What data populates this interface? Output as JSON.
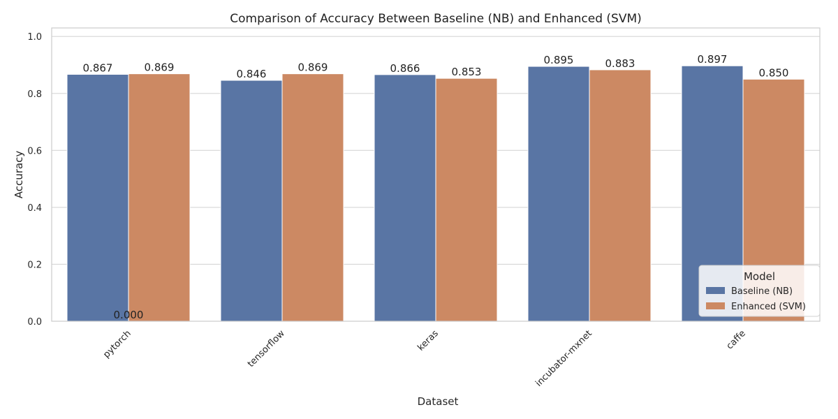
{
  "chart_data": {
    "type": "bar",
    "title": "Comparison of Accuracy Between Baseline (NB) and Enhanced (SVM)",
    "xlabel": "Dataset",
    "ylabel": "Accuracy",
    "categories": [
      "pytorch",
      "tensorflow",
      "keras",
      "incubator-mxnet",
      "caffe"
    ],
    "series": [
      {
        "name": "Baseline (NB)",
        "color": "#5975a4",
        "values": [
          0.867,
          0.846,
          0.866,
          0.895,
          0.897
        ]
      },
      {
        "name": "Enhanced (SVM)",
        "color": "#cc8963",
        "values": [
          0.869,
          0.869,
          0.853,
          0.883,
          0.85
        ]
      }
    ],
    "bar_labels": [
      [
        "0.867",
        "0.846",
        "0.866",
        "0.895",
        "0.897"
      ],
      [
        "0.869",
        "0.869",
        "0.853",
        "0.883",
        "0.850"
      ]
    ],
    "extra_labels": [
      {
        "text": "0.000",
        "category": "pytorch",
        "value": 0.0
      }
    ],
    "ylim": [
      0,
      1.03
    ],
    "yticks": [
      "0.0",
      "0.2",
      "0.4",
      "0.6",
      "0.8",
      "1.0"
    ],
    "grid": true,
    "legend": {
      "title": "Model",
      "position": "bottom-right"
    }
  }
}
